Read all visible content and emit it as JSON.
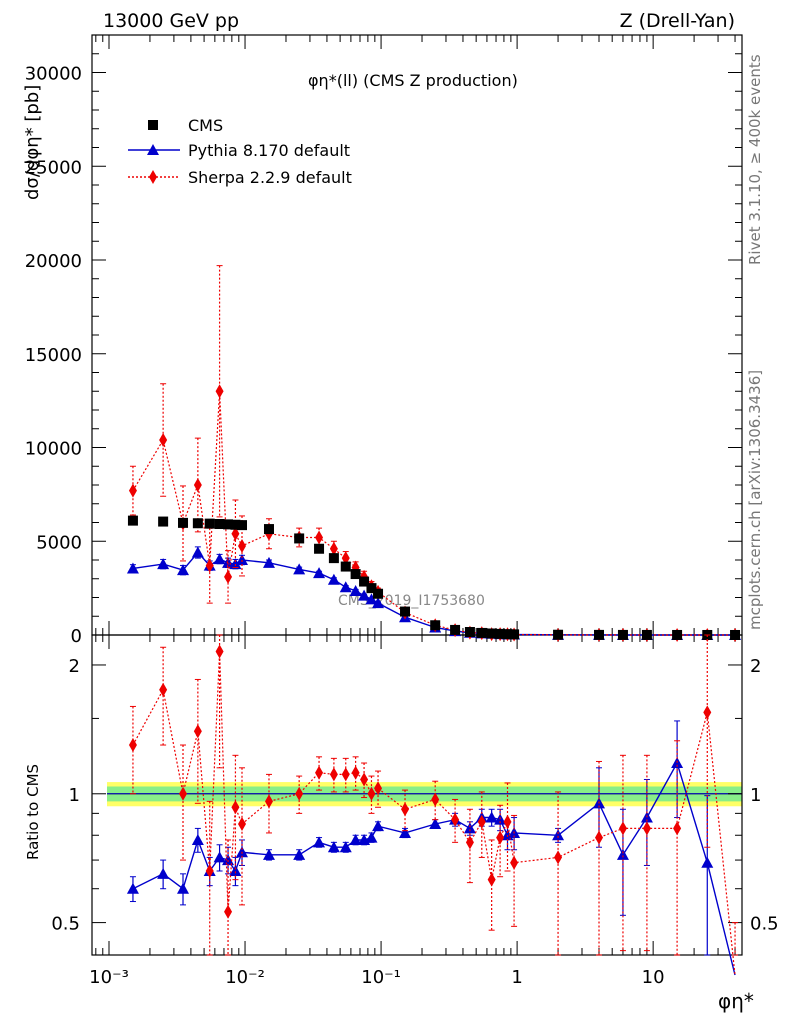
{
  "header": {
    "left": "13000 GeV pp",
    "right": "Z (Drell-Yan)",
    "plot_title": "φη*(ll) (CMS Z production)",
    "analysis_id": "CMS_2019_I1753680",
    "side_rivet": "Rivet 3.1.10, ≥ 400k events",
    "side_mcplots": "mcplots.cern.ch [arXiv:1306.3436]"
  },
  "axes": {
    "main_ylabel": "dσ/dφη* [pb]",
    "ratio_ylabel": "Ratio to CMS",
    "xlabel": "φη*",
    "main_yticks": [
      "0",
      "5000",
      "10000",
      "15000",
      "20000",
      "25000",
      "30000"
    ],
    "ratio_yticks": [
      "0.5",
      "1",
      "2"
    ],
    "xticks": [
      "10⁻³",
      "10⁻²",
      "10⁻¹",
      "1",
      "10"
    ]
  },
  "colors": {
    "cms": "#000000",
    "pythia": "#0000cc",
    "sherpa": "#ee0000",
    "band_outer": "#ffff66",
    "band_inner": "#88ee88"
  },
  "chart_data": {
    "type": "scatter",
    "x_scale": "log",
    "xlim": [
      0.00075,
      45
    ],
    "main_ylim": [
      0,
      32000
    ],
    "ratio_ylim": [
      0.42,
      2.35
    ],
    "ratio_scale": "log",
    "legend": [
      "CMS",
      "Pythia 8.170 default",
      "Sherpa 2.2.9 default"
    ],
    "legend_position": "top-left",
    "x": [
      0.0015,
      0.0025,
      0.0035,
      0.0045,
      0.0055,
      0.0065,
      0.0075,
      0.0085,
      0.0095,
      0.015,
      0.025,
      0.035,
      0.045,
      0.055,
      0.065,
      0.075,
      0.085,
      0.095,
      0.15,
      0.25,
      0.35,
      0.45,
      0.55,
      0.65,
      0.75,
      0.85,
      0.95,
      2.0,
      4.0,
      6.0,
      9.0,
      15.0,
      25.0,
      40.0
    ],
    "series": [
      {
        "name": "CMS",
        "values": [
          6100,
          6050,
          5980,
          5960,
          5940,
          5920,
          5900,
          5880,
          5860,
          5650,
          5150,
          4600,
          4100,
          3650,
          3250,
          2850,
          2500,
          2200,
          1250,
          520,
          270,
          160,
          110,
          80,
          60,
          45,
          35,
          14,
          6,
          4,
          3,
          2,
          1.5,
          1
        ]
      },
      {
        "name": "Pythia 8.170 default",
        "values": [
          3550,
          3780,
          3460,
          4400,
          3700,
          4050,
          3850,
          3780,
          4000,
          3850,
          3500,
          3300,
          2950,
          2550,
          2350,
          2100,
          1900,
          1700,
          950,
          400,
          210,
          120,
          90,
          65,
          50,
          36,
          27,
          10,
          4,
          2.5,
          1.5,
          1.2,
          0.3,
          0.1
        ],
        "errors": [
          200,
          250,
          250,
          300,
          250,
          250,
          250,
          250,
          250,
          150,
          120,
          100,
          100,
          80,
          80,
          80,
          60,
          60,
          40,
          20,
          10,
          8,
          6,
          5,
          4,
          3,
          3,
          2,
          1,
          1,
          1,
          1,
          0.5,
          0.2
        ]
      },
      {
        "name": "Sherpa 2.2.9 default",
        "values": [
          7700,
          10400,
          5950,
          8000,
          3700,
          13000,
          3100,
          5400,
          4750,
          5400,
          5200,
          5200,
          4600,
          4100,
          3600,
          3100,
          2600,
          2300,
          1200,
          520,
          260,
          130,
          100,
          50,
          48,
          40,
          24,
          10,
          4.5,
          3.5,
          2.5,
          1.6,
          2.3,
          0.8
        ],
        "errors": [
          1300,
          3000,
          2000,
          2500,
          2000,
          6700,
          1400,
          1800,
          1600,
          800,
          500,
          500,
          400,
          350,
          300,
          300,
          250,
          200,
          120,
          60,
          30,
          20,
          20,
          10,
          10,
          8,
          6,
          4,
          2,
          2,
          2,
          1,
          1.5,
          0.5
        ]
      }
    ],
    "ratio": {
      "cms_band_inner": 0.04,
      "cms_band_outer": 0.065,
      "series": [
        {
          "name": "Pythia 8.170 default",
          "values": [
            0.6,
            0.65,
            0.6,
            0.78,
            0.66,
            0.71,
            0.7,
            0.66,
            0.73,
            0.72,
            0.72,
            0.77,
            0.75,
            0.75,
            0.78,
            0.78,
            0.79,
            0.84,
            0.81,
            0.85,
            0.87,
            0.83,
            0.88,
            0.88,
            0.87,
            0.8,
            0.81,
            0.8,
            0.95,
            0.72,
            0.88,
            1.18,
            0.69,
            0.3
          ],
          "errors": [
            0.04,
            0.05,
            0.05,
            0.05,
            0.05,
            0.05,
            0.05,
            0.05,
            0.05,
            0.02,
            0.02,
            0.02,
            0.02,
            0.02,
            0.02,
            0.02,
            0.02,
            0.02,
            0.02,
            0.02,
            0.03,
            0.03,
            0.04,
            0.04,
            0.05,
            0.06,
            0.07,
            0.03,
            0.2,
            0.2,
            0.2,
            0.3,
            0.3,
            0.1
          ]
        },
        {
          "name": "Sherpa 2.2.9 default",
          "values": [
            1.3,
            1.75,
            1.0,
            1.4,
            0.66,
            2.15,
            0.53,
            0.93,
            0.85,
            0.96,
            1.0,
            1.12,
            1.11,
            1.11,
            1.12,
            1.08,
            1.0,
            1.03,
            0.92,
            0.97,
            0.87,
            0.77,
            0.86,
            0.63,
            0.79,
            0.86,
            0.69,
            0.71,
            0.79,
            0.83,
            0.83,
            0.83,
            1.55,
            0.3
          ],
          "errors": [
            0.3,
            0.45,
            0.3,
            0.45,
            0.3,
            1.0,
            0.25,
            0.3,
            0.3,
            0.15,
            0.1,
            0.1,
            0.1,
            0.1,
            0.1,
            0.1,
            0.1,
            0.1,
            0.1,
            0.1,
            0.1,
            0.15,
            0.15,
            0.15,
            0.15,
            0.2,
            0.2,
            0.3,
            0.4,
            0.4,
            0.4,
            0.5,
            0.8,
            0.2
          ]
        }
      ]
    }
  }
}
